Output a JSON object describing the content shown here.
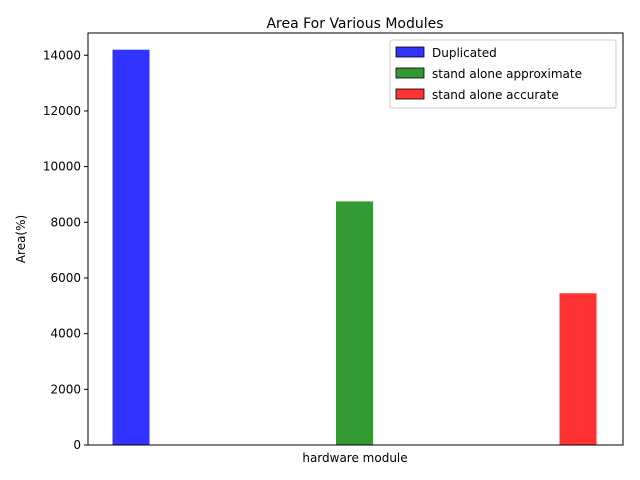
{
  "chart_data": {
    "type": "bar",
    "title": "Area For Various Modules",
    "xlabel": "hardware module",
    "ylabel": "Area(%)",
    "ylim": [
      0,
      14800
    ],
    "yticks": [
      0,
      2000,
      4000,
      6000,
      8000,
      10000,
      12000,
      14000
    ],
    "legend_position": "top-right",
    "grid": false,
    "series": [
      {
        "name": "Duplicated",
        "value": 14200,
        "color": "#3333ff"
      },
      {
        "name": "stand alone approximate",
        "value": 8750,
        "color": "#339933"
      },
      {
        "name": "stand alone accurate",
        "value": 5450,
        "color": "#ff3333"
      }
    ]
  }
}
